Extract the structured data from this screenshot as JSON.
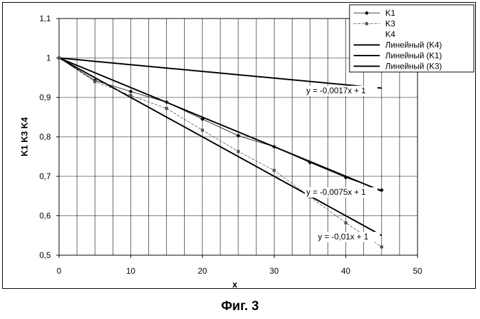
{
  "chart_data": {
    "type": "line",
    "title": "",
    "xlabel": "x",
    "ylabel": "K1 K3 K4",
    "xlim": [
      0,
      50
    ],
    "ylim": [
      0.5,
      1.1
    ],
    "x_ticks": [
      "0",
      "10",
      "20",
      "30",
      "40",
      "50"
    ],
    "y_ticks": [
      "0,5",
      "0,6",
      "0,7",
      "0,8",
      "0,9",
      "1",
      "1,1"
    ],
    "grid": true,
    "legend_position": "top-right",
    "series": [
      {
        "name": "K1",
        "marker": "diamond",
        "color": "#000000",
        "x": [
          0,
          5,
          10,
          15,
          20,
          25,
          30,
          35,
          40,
          45
        ],
        "y": [
          1.0,
          0.943,
          0.915,
          0.888,
          0.845,
          0.803,
          0.775,
          0.735,
          0.697,
          0.665
        ]
      },
      {
        "name": "K3",
        "marker": "square",
        "color": "#555555",
        "x": [
          0,
          5,
          10,
          15,
          20,
          25,
          30,
          35,
          40,
          45
        ],
        "y": [
          1.0,
          0.94,
          0.905,
          0.872,
          0.817,
          0.763,
          0.715,
          0.648,
          0.582,
          0.521
        ]
      },
      {
        "name": "K4",
        "marker": "none",
        "color": "#000000",
        "x": [],
        "y": []
      }
    ],
    "trendlines": [
      {
        "name": "Линейный (K4)",
        "slope": -0.0017,
        "intercept": 1,
        "x_range": [
          0,
          45
        ],
        "equation": "y = -0,0017x + 1"
      },
      {
        "name": "Линейный (K1)",
        "slope": -0.0075,
        "intercept": 1,
        "x_range": [
          0,
          45
        ],
        "equation": "y = -0,0075x + 1"
      },
      {
        "name": "Линейный (K3)",
        "slope": -0.01,
        "intercept": 1,
        "x_range": [
          0,
          45
        ],
        "equation": "y = -0,01x + 1"
      }
    ],
    "legend": [
      "K1",
      "K3",
      "K4",
      "Линейный (K4)",
      "Линейный (K1)",
      "Линейный (K3)"
    ]
  },
  "caption": "Фиг. 3"
}
